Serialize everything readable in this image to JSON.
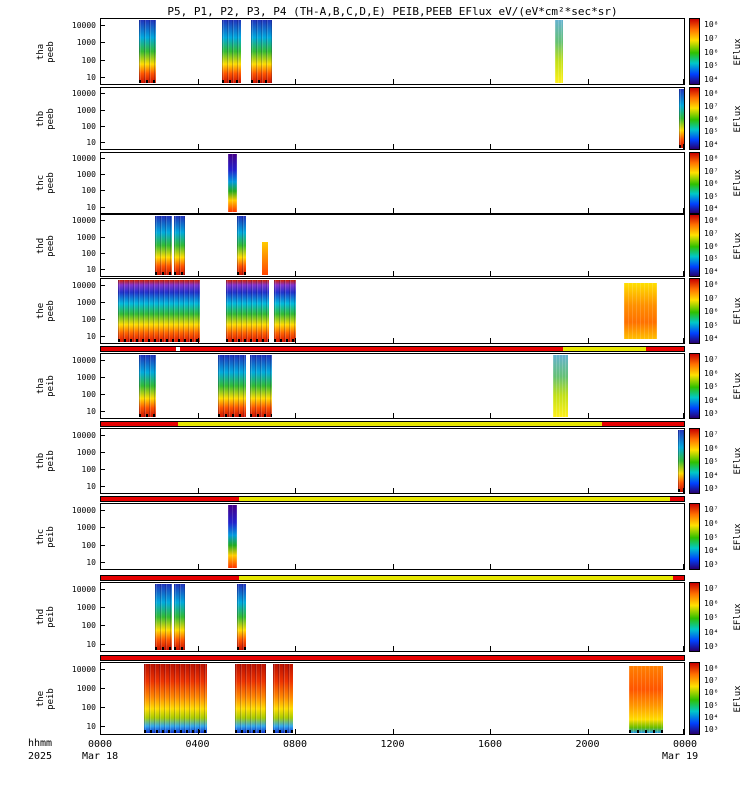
{
  "chart_data": {
    "type": "heatmap",
    "title": "P5, P1, P2, P3, P4 (TH-A,B,C,D,E) PEIB,PEEB EFlux eV/(eV*cm²*sec*sr)",
    "colorbar_label": "EFlux",
    "x_axis": {
      "unit_label": "hhmm",
      "year": "2025",
      "ticks": [
        "0000",
        "0400",
        "0800",
        "1200",
        "1600",
        "2000",
        "0000"
      ],
      "tick_hours": [
        0,
        4,
        8,
        12,
        16,
        20,
        24
      ],
      "date_labels": [
        "Mar 18",
        "Mar 19"
      ],
      "range_hours": [
        0,
        24
      ]
    },
    "y_axis": {
      "scale": "log",
      "ticks": [
        "10000",
        "1000",
        "100",
        "10"
      ],
      "unit": "eV"
    },
    "panels": [
      {
        "probe": "tha",
        "inst": "peeb",
        "colorbar_ticks": [
          "10⁸",
          "10⁷",
          "10⁶",
          "10⁵",
          "10⁴"
        ],
        "intervals": [
          {
            "t0": 1.6,
            "t1": 2.3,
            "style": "burst"
          },
          {
            "t0": 5.0,
            "t1": 5.8,
            "style": "burst"
          },
          {
            "t0": 6.2,
            "t1": 7.05,
            "style": "burst"
          },
          {
            "t0": 18.65,
            "t1": 19.0,
            "style": "soft"
          }
        ]
      },
      {
        "probe": "thb",
        "inst": "peeb",
        "colorbar_ticks": [
          "10⁸",
          "10⁷",
          "10⁶",
          "10⁵",
          "10⁴"
        ],
        "intervals": [
          {
            "t0": 23.75,
            "t1": 24.0,
            "style": "burst"
          }
        ]
      },
      {
        "probe": "thc",
        "inst": "peeb",
        "colorbar_ticks": [
          "10⁸",
          "10⁷",
          "10⁶",
          "10⁵",
          "10⁴"
        ],
        "intervals": [
          {
            "t0": 5.25,
            "t1": 5.6,
            "style": "purple"
          }
        ]
      },
      {
        "probe": "thd",
        "inst": "peeb",
        "colorbar_ticks": [
          "10⁸",
          "10⁷",
          "10⁶",
          "10⁵",
          "10⁴"
        ],
        "intervals": [
          {
            "t0": 2.25,
            "t1": 2.95,
            "style": "burst"
          },
          {
            "t0": 3.05,
            "t1": 3.5,
            "style": "burst"
          },
          {
            "t0": 5.6,
            "t1": 6.0,
            "style": "burst"
          },
          {
            "t0": 6.65,
            "t1": 6.9,
            "style": "small",
            "top": 0.45,
            "bottom": 0.97
          }
        ]
      },
      {
        "probe": "the",
        "inst": "peeb",
        "colorbar_ticks": [
          "10⁸",
          "10⁷",
          "10⁶",
          "10⁵",
          "10⁴"
        ],
        "intervals": [
          {
            "t0": 0.75,
            "t1": 4.1,
            "style": "wide"
          },
          {
            "t0": 5.15,
            "t1": 6.95,
            "style": "wide"
          },
          {
            "t0": 7.15,
            "t1": 8.05,
            "style": "wide"
          },
          {
            "t0": 21.5,
            "t1": 22.85,
            "style": "warm",
            "top": 0.08,
            "bottom": 0.93
          }
        ]
      },
      {
        "probe": "tha",
        "inst": "peib",
        "colorbar_ticks": [
          "10⁷",
          "10⁶",
          "10⁵",
          "10⁴",
          "10³"
        ],
        "intervals": [
          {
            "t0": 1.6,
            "t1": 2.3,
            "style": "burst"
          },
          {
            "t0": 4.85,
            "t1": 6.0,
            "style": "burst"
          },
          {
            "t0": 6.15,
            "t1": 7.05,
            "style": "burst"
          },
          {
            "t0": 18.6,
            "t1": 19.2,
            "style": "soft"
          }
        ]
      },
      {
        "probe": "thb",
        "inst": "peib",
        "colorbar_ticks": [
          "10⁷",
          "10⁶",
          "10⁵",
          "10⁴",
          "10³"
        ],
        "intervals": [
          {
            "t0": 23.7,
            "t1": 24.0,
            "style": "burst"
          }
        ]
      },
      {
        "probe": "thc",
        "inst": "peib",
        "colorbar_ticks": [
          "10⁷",
          "10⁶",
          "10⁵",
          "10⁴",
          "10³"
        ],
        "intervals": [
          {
            "t0": 5.25,
            "t1": 5.6,
            "style": "purple"
          }
        ]
      },
      {
        "probe": "thd",
        "inst": "peib",
        "colorbar_ticks": [
          "10⁷",
          "10⁶",
          "10⁵",
          "10⁴",
          "10³"
        ],
        "intervals": [
          {
            "t0": 2.25,
            "t1": 2.95,
            "style": "burst"
          },
          {
            "t0": 3.05,
            "t1": 3.5,
            "style": "burst"
          },
          {
            "t0": 5.6,
            "t1": 6.0,
            "style": "burst"
          }
        ]
      },
      {
        "probe": "the",
        "inst": "peib",
        "colorbar_ticks": [
          "10⁸",
          "10⁷",
          "10⁶",
          "10⁵",
          "10⁴",
          "10³"
        ],
        "intervals": [
          {
            "t0": 1.8,
            "t1": 4.4,
            "style": "wide2"
          },
          {
            "t0": 5.55,
            "t1": 6.8,
            "style": "wide2"
          },
          {
            "t0": 7.1,
            "t1": 7.9,
            "style": "wide2"
          },
          {
            "t0": 21.7,
            "t1": 23.1,
            "style": "warm2",
            "top": 0.05,
            "bottom": 0.97
          }
        ]
      }
    ],
    "status_bars": [
      {
        "segments": [
          {
            "t0": 0.0,
            "t1": 3.1,
            "color": "#e60000"
          },
          {
            "t0": 3.3,
            "t1": 19.0,
            "color": "#e60000"
          },
          {
            "t0": 19.0,
            "t1": 22.4,
            "color": "#e6e600"
          },
          {
            "t0": 22.4,
            "t1": 24.0,
            "color": "#e60000"
          }
        ]
      },
      {
        "segments": [
          {
            "t0": 0.0,
            "t1": 3.2,
            "color": "#e60000"
          },
          {
            "t0": 3.2,
            "t1": 20.6,
            "color": "#e6e600"
          },
          {
            "t0": 20.6,
            "t1": 24.0,
            "color": "#e60000"
          }
        ]
      },
      {
        "segments": [
          {
            "t0": 0.0,
            "t1": 5.7,
            "color": "#e60000"
          },
          {
            "t0": 5.7,
            "t1": 23.4,
            "color": "#e6e600"
          },
          {
            "t0": 23.4,
            "t1": 24.0,
            "color": "#e60000"
          }
        ]
      },
      {
        "segments": [
          {
            "t0": 0.0,
            "t1": 5.7,
            "color": "#e60000"
          },
          {
            "t0": 5.7,
            "t1": 23.5,
            "color": "#e6e600"
          },
          {
            "t0": 23.5,
            "t1": 24.0,
            "color": "#e60000"
          }
        ]
      },
      {
        "segments": [
          {
            "t0": 0.0,
            "t1": 24.0,
            "color": "#e60000"
          }
        ]
      }
    ]
  }
}
